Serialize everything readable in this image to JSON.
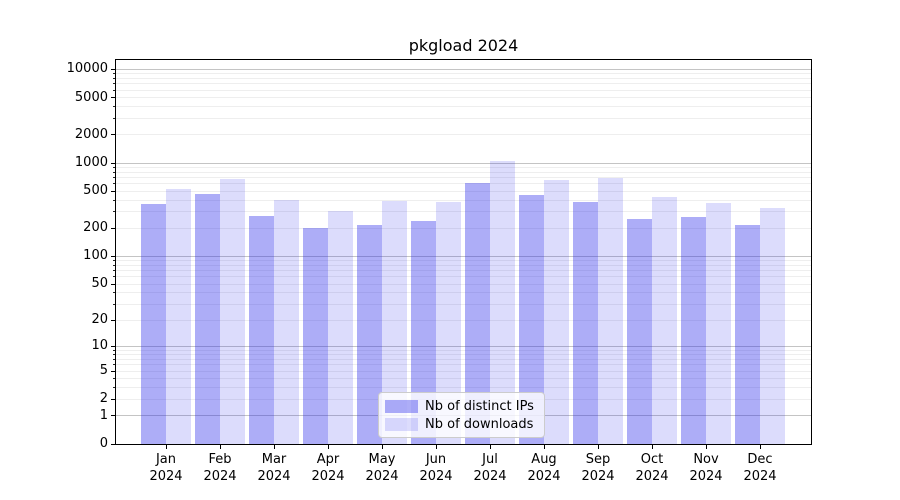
{
  "chart_data": {
    "type": "bar",
    "title": "pkgload 2024",
    "categories": [
      "Jan",
      "Feb",
      "Mar",
      "Apr",
      "May",
      "Jun",
      "Jul",
      "Aug",
      "Sep",
      "Oct",
      "Nov",
      "Dec"
    ],
    "category_year": "2024",
    "series": [
      {
        "name": "Nb of distinct IPs",
        "color": "rgba(40,40,235,0.38)",
        "values": [
          360,
          470,
          270,
          200,
          215,
          240,
          610,
          450,
          380,
          250,
          265,
          215
        ]
      },
      {
        "name": "Nb of downloads",
        "color": "rgba(40,40,235,0.16)",
        "values": [
          530,
          680,
          400,
          305,
          390,
          380,
          1040,
          655,
          700,
          435,
          370,
          330
        ]
      }
    ],
    "yscale": "log1p",
    "ylim": [
      0,
      12600
    ],
    "yticks": [
      0,
      1,
      2,
      5,
      10,
      20,
      50,
      100,
      200,
      500,
      1000,
      2000,
      5000,
      10000
    ],
    "ymajor_gridlines": [
      1,
      10,
      100,
      1000,
      10000
    ],
    "yminor_gridline_bases": [
      1,
      10,
      100,
      1000
    ],
    "grid": {
      "major_color": "#c4c4c4",
      "minor_color": "#eeeeee"
    },
    "axis_color": "#000000",
    "legend_position": "lower-center"
  }
}
